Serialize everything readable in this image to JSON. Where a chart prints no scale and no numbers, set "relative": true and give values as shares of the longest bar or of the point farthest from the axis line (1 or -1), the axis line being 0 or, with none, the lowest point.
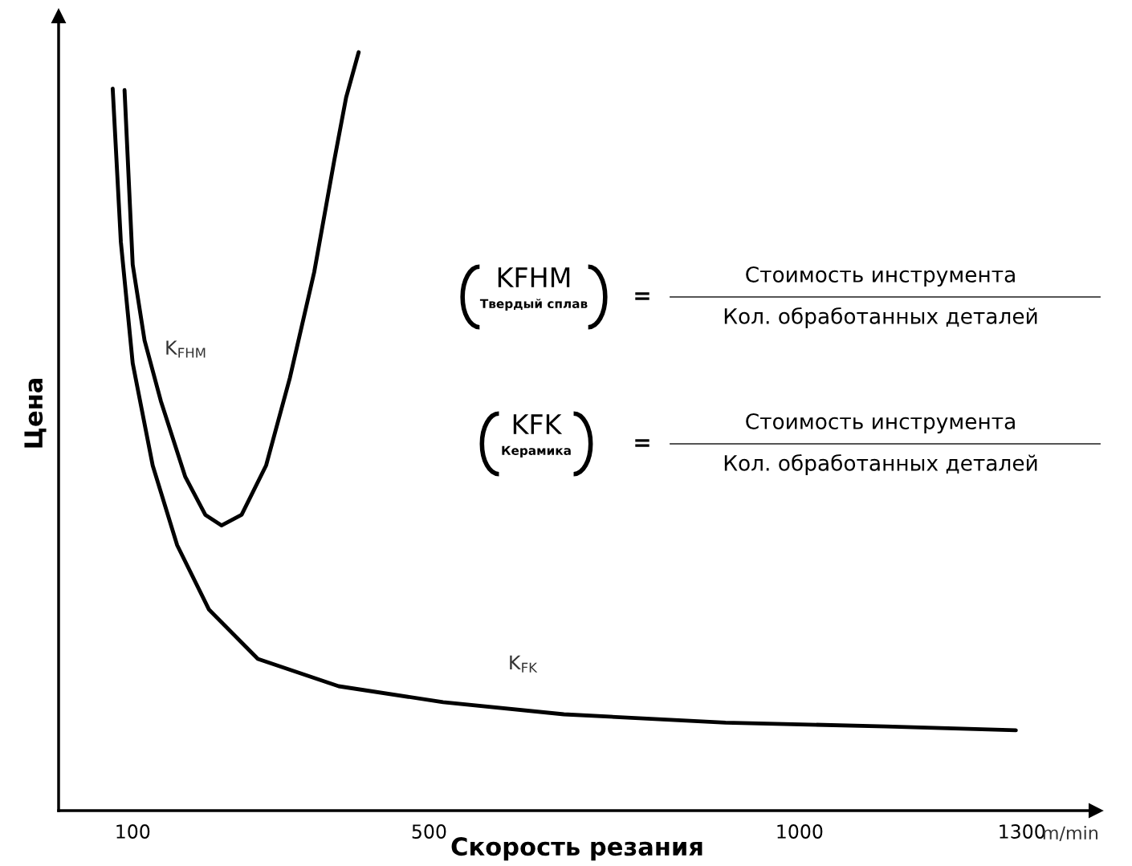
{
  "chart_data": {
    "type": "line",
    "relative": true,
    "xlabel": "Скорость резания",
    "ylabel": "Цена",
    "xlim": [
      0,
      1400
    ],
    "xticks": [
      100,
      500,
      1000,
      1300
    ],
    "tick_labels": "x",
    "grid": false,
    "legend": false,
    "marker": "none",
    "line_style": "solid",
    "series": [
      {
        "name": "K$_{FHM}$",
        "color": "#000000",
        "x": [
          89,
          100,
          116,
          138,
          171,
          198,
          220,
          247,
          280,
          312,
          345,
          372,
          388,
          405
        ],
        "values": [
          0.95,
          0.72,
          0.62,
          0.54,
          0.44,
          0.39,
          0.376,
          0.39,
          0.455,
          0.57,
          0.71,
          0.857,
          0.94,
          1.0
        ]
      },
      {
        "name": "K$_{FK}$",
        "color": "#000000",
        "x": [
          73,
          84,
          100,
          127,
          160,
          203,
          269,
          378,
          519,
          682,
          900,
          1117,
          1292
        ],
        "values": [
          0.952,
          0.75,
          0.59,
          0.455,
          0.35,
          0.265,
          0.2,
          0.164,
          0.143,
          0.127,
          0.116,
          0.111,
          0.106
        ]
      }
    ],
    "annotations": [
      "m/min",
      "KFHM",
      "Твердый сплав",
      "=",
      "Стоимость инструмента",
      "Кол. обработанных деталей",
      "KFK",
      "Керамика",
      "=",
      "Стоимость инструмента",
      "Кол. обработанных деталей"
    ]
  }
}
